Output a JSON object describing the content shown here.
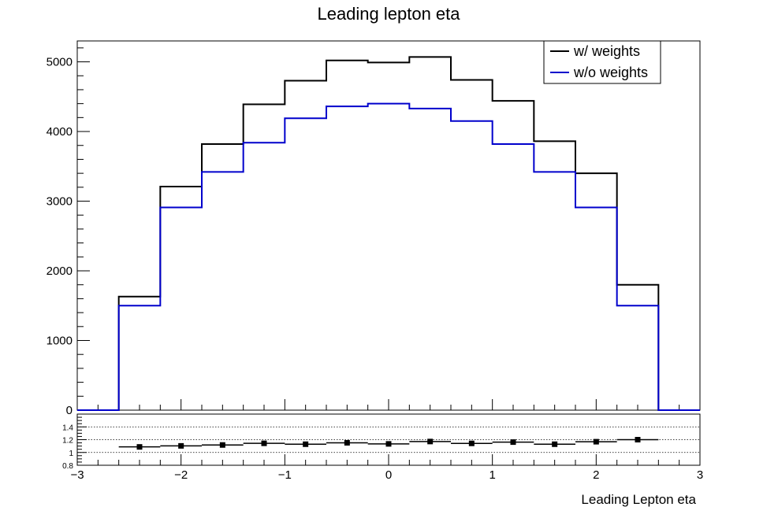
{
  "chart_data": {
    "type": "histogram",
    "title": "Leading lepton eta",
    "xlabel": "Leading Lepton eta",
    "ylabel": "",
    "xlim": [
      -3,
      3
    ],
    "ylim": [
      0,
      5300
    ],
    "bin_edges": [
      -3.0,
      -2.6,
      -2.2,
      -1.8,
      -1.4,
      -1.0,
      -0.6,
      -0.2,
      0.2,
      0.6,
      1.0,
      1.4,
      1.8,
      2.2,
      2.6,
      3.0
    ],
    "series": [
      {
        "name": "w/ weights",
        "color": "#000000",
        "values": [
          0,
          1630,
          3210,
          3820,
          4390,
          4730,
          5020,
          4990,
          5070,
          4740,
          4440,
          3860,
          3400,
          1800,
          0
        ]
      },
      {
        "name": "w/o weights",
        "color": "#0000cc",
        "values": [
          0,
          1500,
          2910,
          3420,
          3840,
          4190,
          4360,
          4400,
          4330,
          4150,
          3820,
          3420,
          2910,
          1500,
          0
        ]
      }
    ],
    "y_ticks": [
      "0",
      "1000",
      "2000",
      "3000",
      "4000",
      "5000"
    ],
    "x_ticks": [
      "−3",
      "−2",
      "−1",
      "0",
      "1",
      "2",
      "3"
    ],
    "legend": {
      "position": "top-right",
      "entries": [
        "w/ weights",
        "w/o weights"
      ]
    },
    "ratio": {
      "ylim": [
        0.8,
        1.6
      ],
      "y_ticks": [
        "0.8",
        "1",
        "1.2",
        "1.4"
      ],
      "gridlines": [
        1.0,
        1.2,
        1.4
      ],
      "x_centers": [
        -2.4,
        -2.0,
        -1.6,
        -1.2,
        -0.8,
        -0.4,
        0.0,
        0.4,
        0.8,
        1.2,
        1.6,
        2.0,
        2.4
      ],
      "values": [
        1.087,
        1.103,
        1.117,
        1.143,
        1.129,
        1.151,
        1.134,
        1.171,
        1.142,
        1.162,
        1.129,
        1.168,
        1.2
      ]
    }
  }
}
